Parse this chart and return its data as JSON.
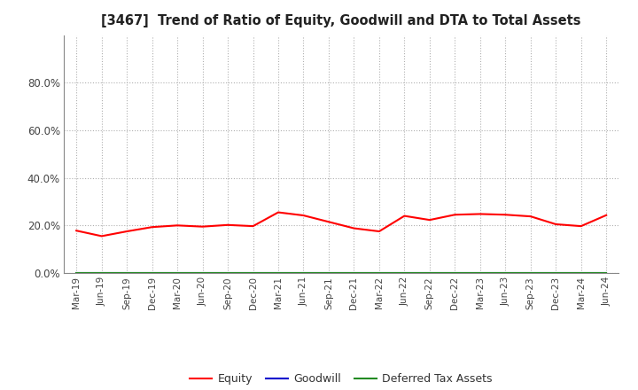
{
  "title": "[3467]  Trend of Ratio of Equity, Goodwill and DTA to Total Assets",
  "x_labels": [
    "Mar-19",
    "Jun-19",
    "Sep-19",
    "Dec-19",
    "Mar-20",
    "Jun-20",
    "Sep-20",
    "Dec-20",
    "Mar-21",
    "Jun-21",
    "Sep-21",
    "Dec-21",
    "Mar-22",
    "Jun-22",
    "Sep-22",
    "Dec-22",
    "Mar-23",
    "Jun-23",
    "Sep-23",
    "Dec-23",
    "Mar-24",
    "Jun-24"
  ],
  "equity": [
    0.178,
    0.155,
    0.175,
    0.193,
    0.2,
    0.195,
    0.202,
    0.197,
    0.255,
    0.242,
    0.215,
    0.188,
    0.175,
    0.24,
    0.223,
    0.245,
    0.248,
    0.245,
    0.238,
    0.205,
    0.197,
    0.243
  ],
  "goodwill": [
    0,
    0,
    0,
    0,
    0,
    0,
    0,
    0,
    0,
    0,
    0,
    0,
    0,
    0,
    0,
    0,
    0,
    0,
    0,
    0,
    0,
    0
  ],
  "dta": [
    0,
    0,
    0,
    0,
    0,
    0,
    0,
    0,
    0,
    0,
    0,
    0,
    0,
    0,
    0,
    0,
    0,
    0,
    0,
    0,
    0,
    0
  ],
  "equity_color": "#ff0000",
  "goodwill_color": "#0000cd",
  "dta_color": "#228B22",
  "ylim": [
    0.0,
    1.0
  ],
  "yticks": [
    0.0,
    0.2,
    0.4,
    0.6,
    0.8
  ],
  "ytick_labels": [
    "0.0%",
    "20.0%",
    "40.0%",
    "60.0%",
    "80.0%"
  ],
  "background_color": "#ffffff",
  "plot_bg_color": "#ffffff",
  "grid_color": "#b0b0b0",
  "legend_labels": [
    "Equity",
    "Goodwill",
    "Deferred Tax Assets"
  ]
}
